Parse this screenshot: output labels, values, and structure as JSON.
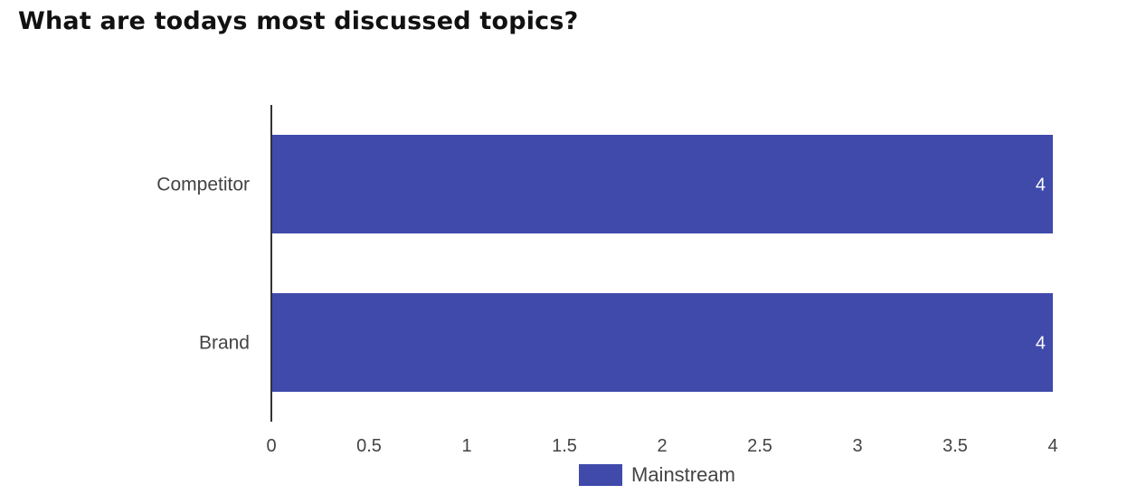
{
  "title": "What are todays most discussed topics?",
  "colors": {
    "bar": "#3f4aab",
    "axis": "#333333",
    "text": "#444444",
    "data_label": "#ffffff"
  },
  "chart_data": {
    "type": "bar",
    "orientation": "horizontal",
    "categories": [
      "Competitor",
      "Brand"
    ],
    "series": [
      {
        "name": "Mainstream",
        "values": [
          4,
          4
        ]
      }
    ],
    "xlim": [
      0,
      4
    ],
    "x_ticks": [
      "0",
      "0.5",
      "1",
      "1.5",
      "2",
      "2.5",
      "3",
      "3.5",
      "4"
    ],
    "data_labels": [
      "4",
      "4"
    ],
    "grid": false,
    "legend_position": "bottom"
  }
}
